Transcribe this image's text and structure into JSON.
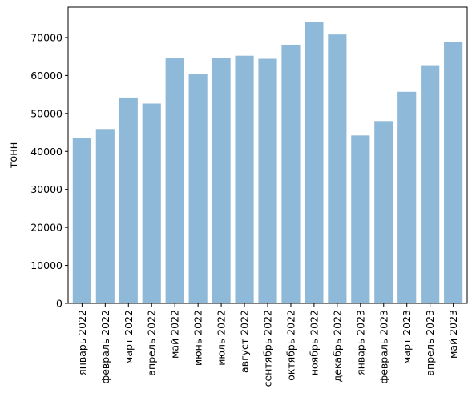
{
  "chart_data": {
    "type": "bar",
    "ylabel": "тонн",
    "ylim": [
      0,
      78000
    ],
    "yticks": [
      0,
      10000,
      20000,
      30000,
      40000,
      50000,
      60000,
      70000
    ],
    "grid": false,
    "bar_color": "#8fb9d8",
    "categories": [
      "январь 2022",
      "февраль 2022",
      "март 2022",
      "апрель 2022",
      "май 2022",
      "июнь 2022",
      "июль 2022",
      "август 2022",
      "сентябрь 2022",
      "октябрь 2022",
      "ноябрь 2022",
      "декабрь 2022",
      "январь 2023",
      "февраль 2023",
      "март 2023",
      "апрель 2023",
      "май 2023"
    ],
    "values": [
      43500,
      45900,
      54200,
      52600,
      64500,
      60500,
      64600,
      65200,
      64400,
      68100,
      74000,
      70800,
      44200,
      48000,
      55700,
      62700,
      68800
    ]
  }
}
